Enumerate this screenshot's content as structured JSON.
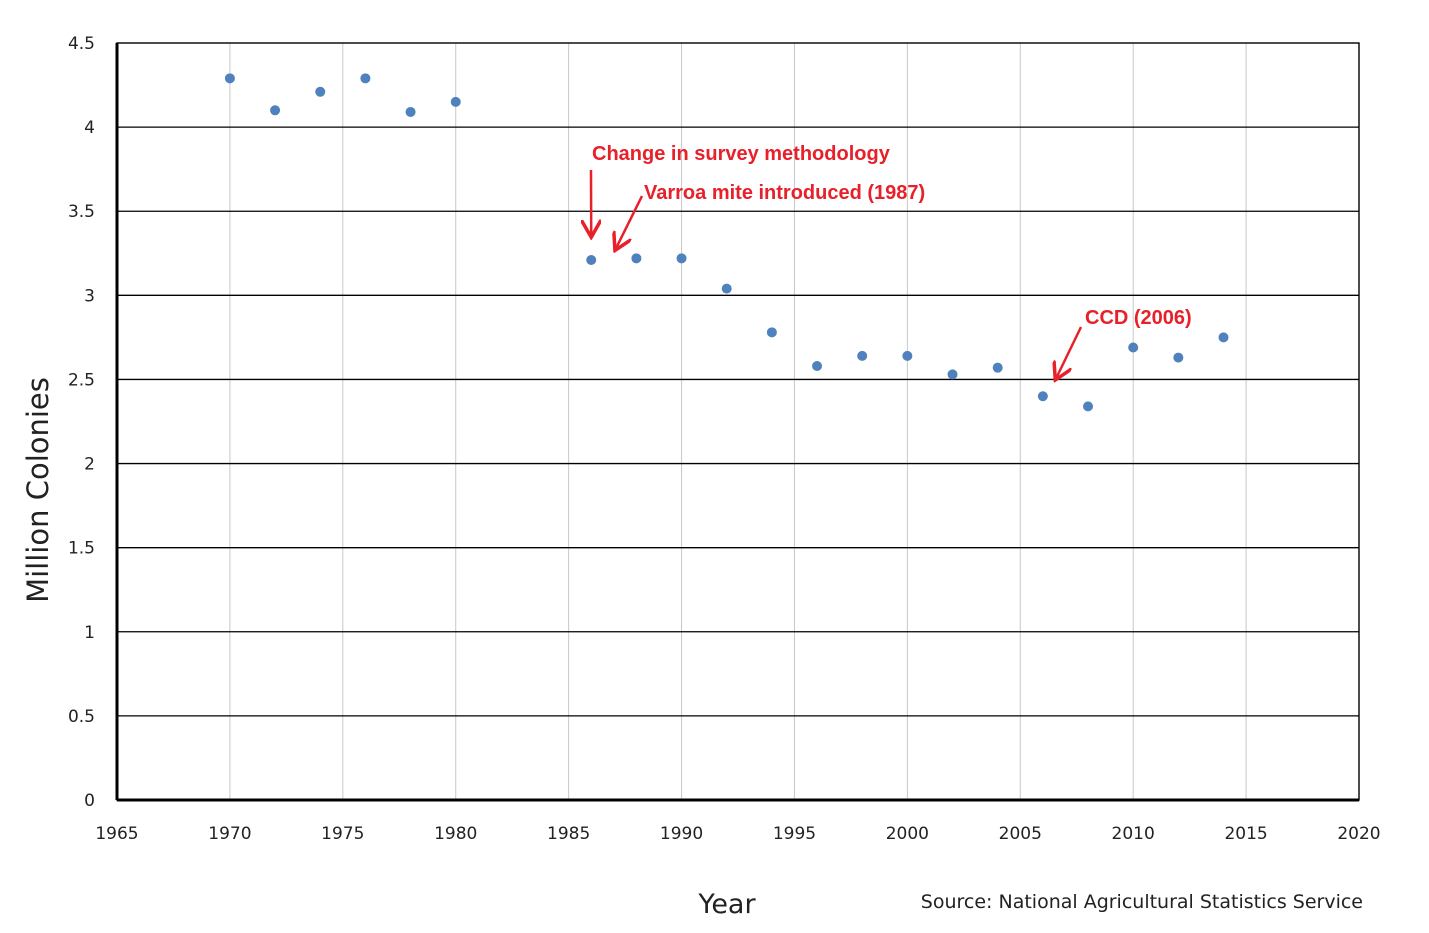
{
  "chart_data": {
    "type": "scatter",
    "title": "",
    "xlabel": "Year",
    "ylabel": "Million Colonies",
    "xlim": [
      1965,
      2020
    ],
    "ylim": [
      0,
      4.5
    ],
    "x_ticks": [
      "1965",
      "1970",
      "1975",
      "1980",
      "1985",
      "1990",
      "1995",
      "2000",
      "2005",
      "2010",
      "2015",
      "2020"
    ],
    "y_ticks": [
      "0",
      "0.5",
      "1",
      "1.5",
      "2",
      "2.5",
      "3",
      "3.5",
      "4",
      "4.5"
    ],
    "grid": true,
    "marker_color": "#4F81BD",
    "annotation_color": "#E8202A",
    "series": [
      {
        "points": [
          {
            "x": 1970,
            "y": 4.29
          },
          {
            "x": 1972,
            "y": 4.1
          },
          {
            "x": 1974,
            "y": 4.21
          },
          {
            "x": 1976,
            "y": 4.29
          },
          {
            "x": 1978,
            "y": 4.09
          },
          {
            "x": 1980,
            "y": 4.15
          },
          {
            "x": 1986,
            "y": 3.21
          },
          {
            "x": 1988,
            "y": 3.22
          },
          {
            "x": 1990,
            "y": 3.22
          },
          {
            "x": 1992,
            "y": 3.04
          },
          {
            "x": 1994,
            "y": 2.78
          },
          {
            "x": 1996,
            "y": 2.58
          },
          {
            "x": 1998,
            "y": 2.64
          },
          {
            "x": 2000,
            "y": 2.64
          },
          {
            "x": 2002,
            "y": 2.53
          },
          {
            "x": 2004,
            "y": 2.57
          },
          {
            "x": 2006,
            "y": 2.4
          },
          {
            "x": 2008,
            "y": 2.34
          },
          {
            "x": 2010,
            "y": 2.69
          },
          {
            "x": 2012,
            "y": 2.63
          },
          {
            "x": 2014,
            "y": 2.75
          }
        ]
      }
    ],
    "annotations": [
      {
        "text": "Change in survey methodology",
        "target": {
          "x": 1986,
          "y": 3.36
        }
      },
      {
        "text": "Varroa mite introduced (1987)",
        "target": {
          "x": 1987.1,
          "y": 3.28
        }
      },
      {
        "text": "CCD (2006)",
        "target": {
          "x": 2006.6,
          "y": 2.51
        }
      }
    ],
    "source": "Source:  National Agricultural Statistics Service"
  }
}
